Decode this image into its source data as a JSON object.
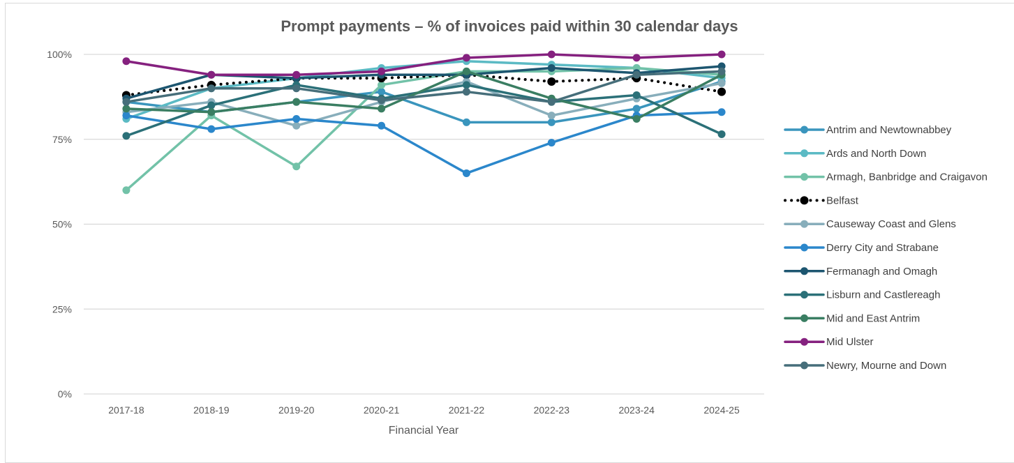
{
  "chart_data": {
    "type": "line",
    "title": "Prompt payments – % of invoices paid within 30 calendar days",
    "xlabel": "Financial Year",
    "ylabel": "",
    "ylim": [
      0,
      100
    ],
    "y_ticks": [
      "0%",
      "25%",
      "50%",
      "75%",
      "100%"
    ],
    "y_tick_values": [
      0,
      25,
      50,
      75,
      100
    ],
    "grid": true,
    "legend_position": "right",
    "categories": [
      "2017-18",
      "2018-19",
      "2019-20",
      "2020-21",
      "2021-22",
      "2022-23",
      "2023-24",
      "2024-25"
    ],
    "series": [
      {
        "name": "Antrim and Newtownabbey",
        "color": "#3a95bd",
        "style": "solid",
        "values": [
          86,
          83,
          86,
          89,
          80,
          80,
          84,
          92
        ]
      },
      {
        "name": "Ards and North Down",
        "color": "#5bbac4",
        "style": "solid",
        "values": [
          81,
          90,
          93,
          96,
          98,
          97,
          96,
          93
        ]
      },
      {
        "name": "Armagh, Banbridge and Craigavon",
        "color": "#72c2a8",
        "style": "solid",
        "values": [
          60,
          82,
          67,
          91,
          95,
          95,
          96,
          94
        ]
      },
      {
        "name": "Belfast",
        "color": "#000000",
        "style": "dotted",
        "values": [
          88,
          91,
          93,
          93,
          94,
          92,
          93,
          89
        ]
      },
      {
        "name": "Causeway Coast and Glens",
        "color": "#88aebb",
        "style": "solid",
        "values": [
          83,
          86,
          79,
          86,
          92,
          82,
          87,
          91.5
        ]
      },
      {
        "name": "Derry City and Strabane",
        "color": "#2b87cb",
        "style": "solid",
        "values": [
          82,
          78,
          81,
          79,
          65,
          74,
          82,
          83
        ]
      },
      {
        "name": "Fermanagh and Omagh",
        "color": "#1d5670",
        "style": "solid",
        "values": [
          87,
          94,
          93,
          94,
          94,
          96,
          94.5,
          96.5
        ]
      },
      {
        "name": "Lisburn and Castlereagh",
        "color": "#2b7078",
        "style": "solid",
        "values": [
          76,
          85,
          91,
          87,
          91,
          86,
          88,
          76.5
        ]
      },
      {
        "name": "Mid and East Antrim",
        "color": "#3a7e62",
        "style": "solid",
        "values": [
          84,
          83,
          86,
          84,
          95,
          87,
          81,
          94
        ]
      },
      {
        "name": "Mid Ulster",
        "color": "#85217f",
        "style": "solid",
        "values": [
          98,
          94,
          94,
          95,
          99,
          100,
          99,
          100
        ]
      },
      {
        "name": "Newry, Mourne and Down",
        "color": "#466e7a",
        "style": "solid",
        "values": [
          86,
          90,
          90,
          86.5,
          89,
          86,
          94,
          95
        ]
      }
    ]
  }
}
